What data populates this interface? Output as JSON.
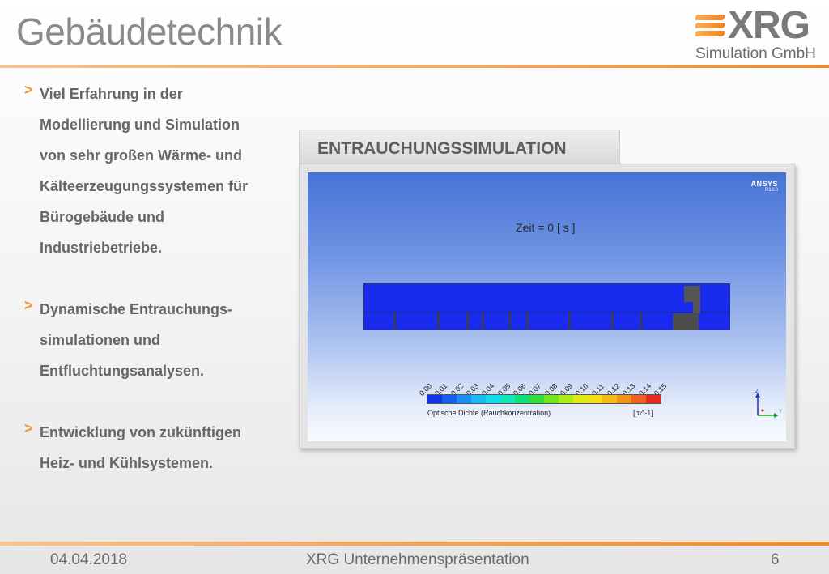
{
  "slide": {
    "title": "Gebäudetechnik",
    "logo": {
      "name": "XRG",
      "subtitle": "Simulation GmbH"
    }
  },
  "bullets": [
    {
      "marker": ">",
      "lines": [
        "Viel Erfahrung in der",
        "Modellierung und Simulation",
        "von sehr großen Wärme- und",
        "Kälteerzeugungssystemen für",
        "Bürogebäude und",
        "Industriebetriebe."
      ]
    },
    {
      "marker": ">",
      "lines": [
        "Dynamische Entrauchungs-",
        "simulationen und",
        "Entfluchtungsanalysen."
      ]
    },
    {
      "marker": ">",
      "lines": [
        "Entwicklung von zukünftigen",
        "Heiz- und Kühlsystemen."
      ]
    }
  ],
  "simulation": {
    "tab_label": "ENTRAUCHUNGSSIMULATION",
    "brand": "ANSYS",
    "brand_version": "R18.0",
    "time_label": "Zeit = 0 [ s ]",
    "colorbar_ticks": [
      "0.00",
      "0.01",
      "0.02",
      "0.03",
      "0.04",
      "0.05",
      "0.06",
      "0.07",
      "0.08",
      "0.09",
      "0.10",
      "0.11",
      "0.12",
      "0.13",
      "0.14",
      "0.15"
    ],
    "colorbar_colors": [
      "#1034e6",
      "#1460f0",
      "#1a8cf5",
      "#1ab8f5",
      "#12dde8",
      "#10e8b8",
      "#10e07a",
      "#2ee038",
      "#6ee81c",
      "#a8ec18",
      "#dcec14",
      "#f5e014",
      "#f5bc14",
      "#f5901a",
      "#f26020",
      "#e82a1e"
    ],
    "colorbar_title": "Optische Dichte (Rauchkonzentration)",
    "colorbar_unit": "[m^-1]",
    "axis_labels": {
      "z": "Z",
      "y": "Y"
    }
  },
  "footer": {
    "date": "04.04.2018",
    "center": "XRG Unternehmenspräsentation",
    "page": "6"
  }
}
